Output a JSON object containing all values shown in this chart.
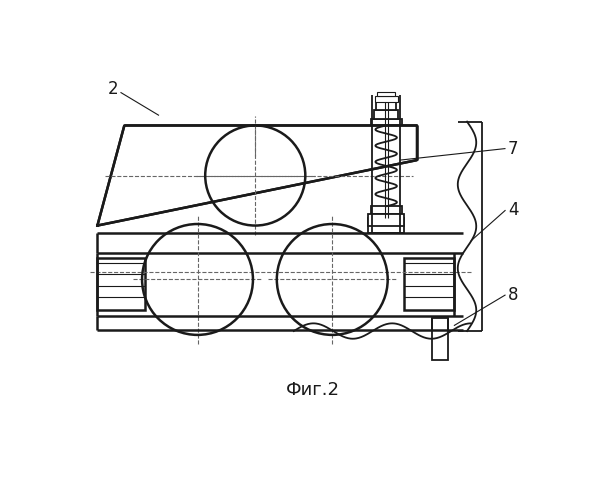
{
  "bg_color": "#ffffff",
  "line_color": "#1a1a1a",
  "title": "Фиг.2",
  "title_fontsize": 13,
  "lw_thin": 0.8,
  "lw_mid": 1.3,
  "lw_thick": 1.8
}
